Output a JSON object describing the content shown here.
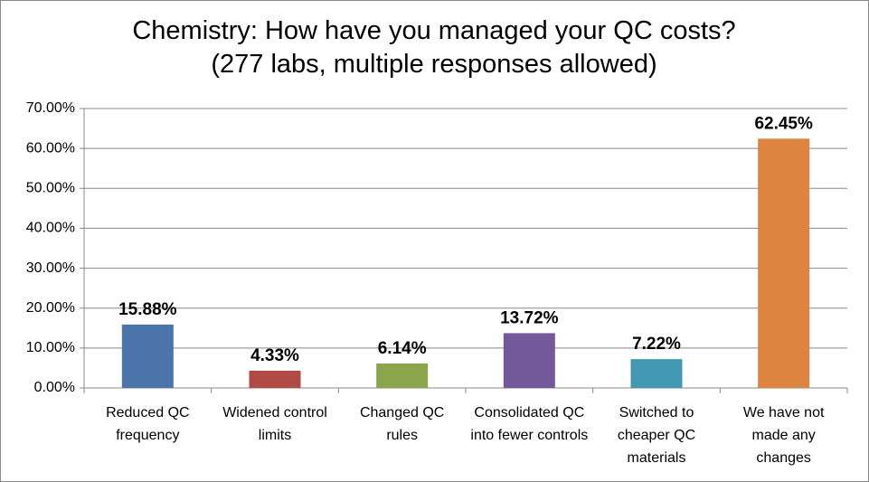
{
  "chart_data": {
    "type": "bar",
    "title": "Chemistry: How have you managed your QC costs? (277 labs, multiple responses allowed)",
    "categories": [
      "Reduced QC frequency",
      "Widened control limits",
      "Changed QC rules",
      "Consolidated QC into fewer controls",
      "Switched to cheaper QC materials",
      "We have not made any changes"
    ],
    "values": [
      15.88,
      4.33,
      6.14,
      13.72,
      7.22,
      62.45
    ],
    "value_labels": [
      "15.88%",
      "4.33%",
      "6.14%",
      "13.72%",
      "7.22%",
      "62.45%"
    ],
    "colors": [
      "#4a74aa",
      "#b04a45",
      "#8ba54c",
      "#73589a",
      "#4298b0",
      "#dd8440"
    ],
    "ylim": [
      0,
      70
    ],
    "yticks": [
      {
        "value": 0,
        "label": "0.00%"
      },
      {
        "value": 10,
        "label": "10.00%"
      },
      {
        "value": 20,
        "label": "20.00%"
      },
      {
        "value": 30,
        "label": "30.00%"
      },
      {
        "value": 40,
        "label": "40.00%"
      },
      {
        "value": 50,
        "label": "50.00%"
      },
      {
        "value": 60,
        "label": "60.00%"
      },
      {
        "value": 70,
        "label": "70.00%"
      }
    ],
    "grid": true
  }
}
